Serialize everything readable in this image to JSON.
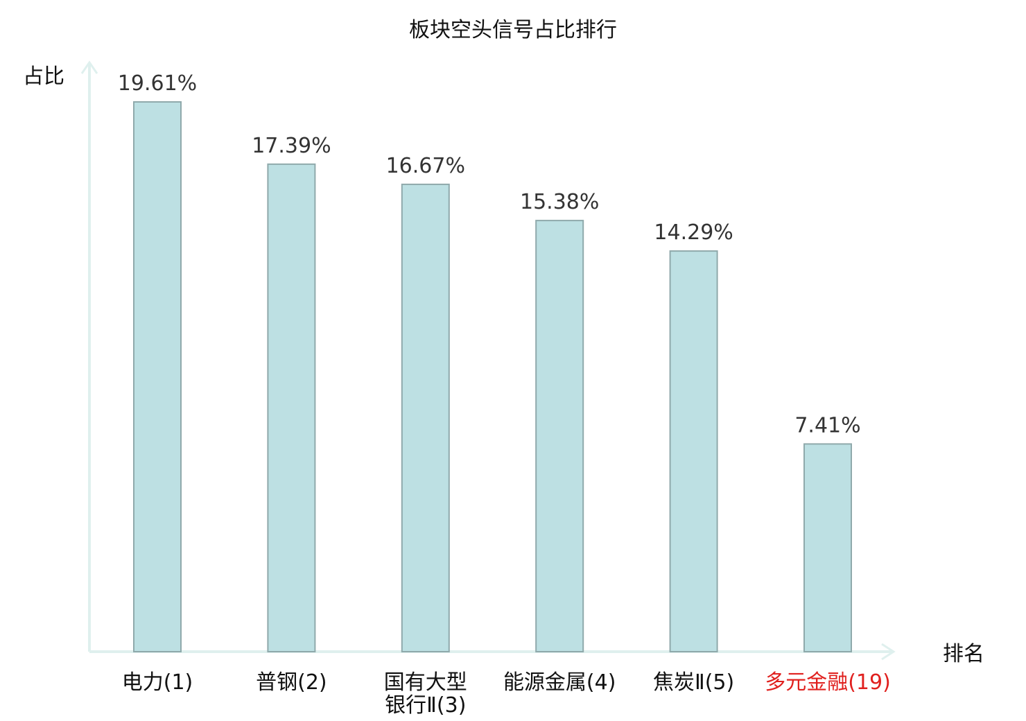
{
  "chart_data": {
    "type": "bar",
    "title": "板块空头信号占比排行",
    "ylabel": "占比",
    "xlabel": "排名",
    "categories": [
      [
        "电力(1)"
      ],
      [
        "普钢(2)"
      ],
      [
        "国有大型",
        "银行Ⅱ(3)"
      ],
      [
        "能源金属(4)"
      ],
      [
        "焦炭Ⅱ(5)"
      ],
      [
        "多元金融(19)"
      ]
    ],
    "values": [
      19.61,
      17.39,
      16.67,
      15.38,
      14.29,
      7.41
    ],
    "value_labels": [
      "19.61%",
      "17.39%",
      "16.67%",
      "15.38%",
      "14.29%",
      "7.41%"
    ],
    "highlight_index": 5,
    "ylim": [
      0,
      20
    ],
    "grid": false,
    "legend": "none"
  },
  "colors": {
    "bar_fill": "#bde0e3",
    "bar_stroke": "#8fa9ab",
    "axis": "#dff0ee",
    "highlight_text": "#e0201e"
  }
}
